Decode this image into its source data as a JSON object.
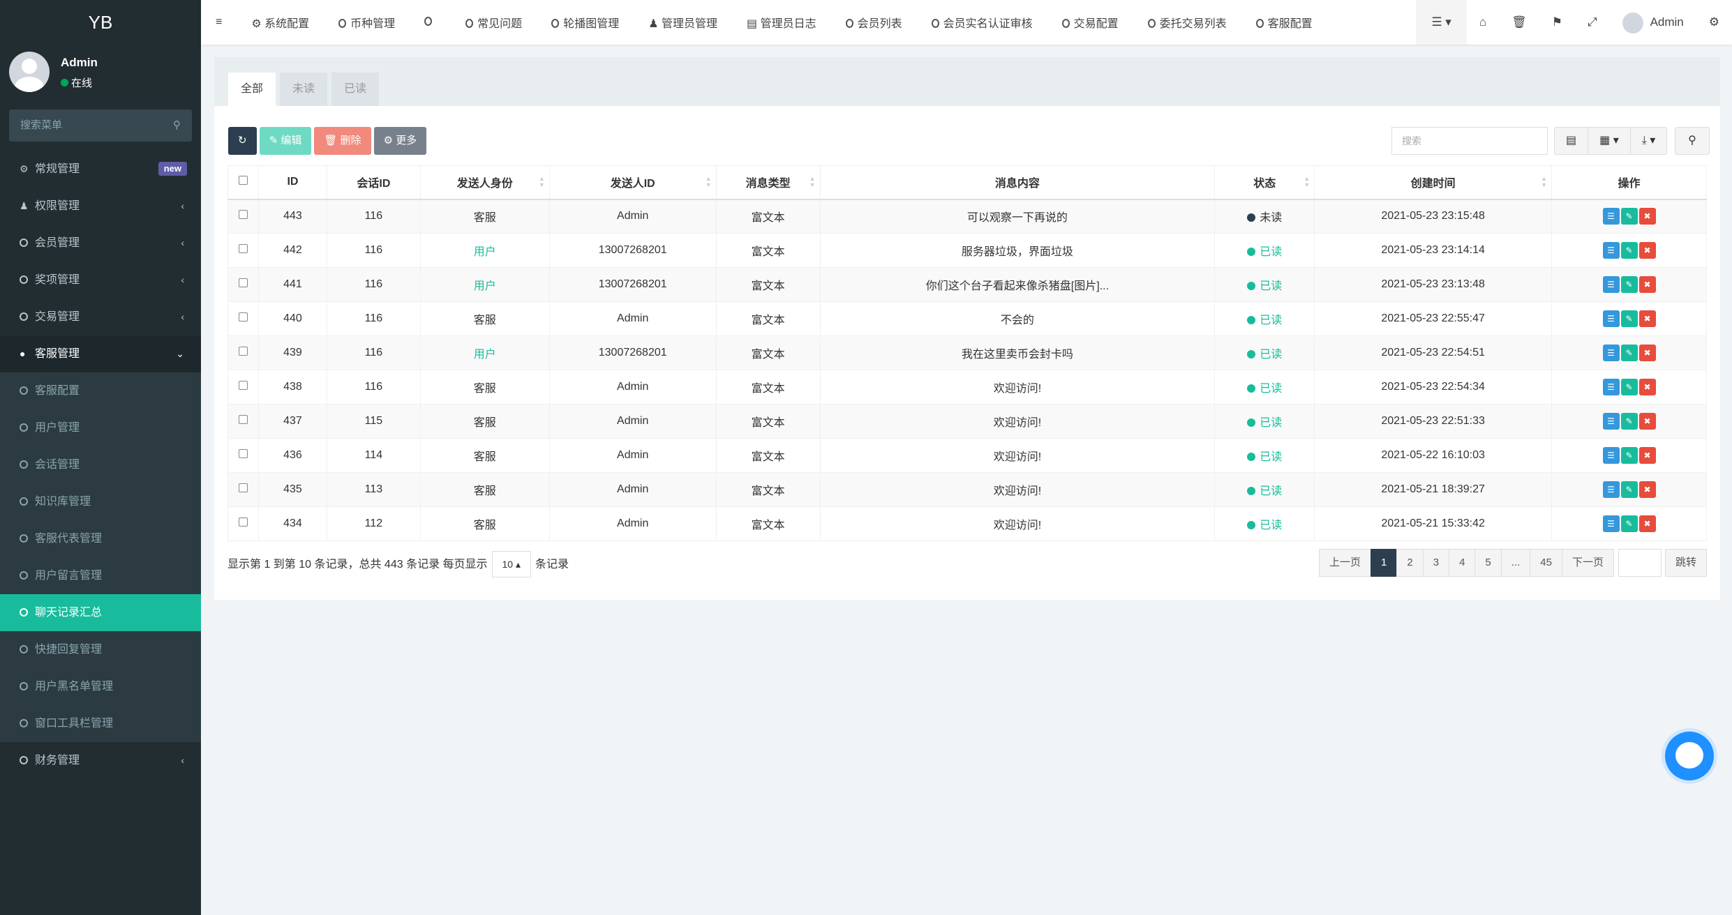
{
  "sidebar": {
    "logo": "YB",
    "user": "Admin",
    "status": "在线",
    "search_placeholder": "搜索菜单",
    "items": [
      {
        "label": "常规管理",
        "icon": "cogs-icon",
        "badge": "new"
      },
      {
        "label": "权限管理",
        "icon": "users-icon"
      },
      {
        "label": "会员管理"
      },
      {
        "label": "奖项管理"
      },
      {
        "label": "交易管理"
      },
      {
        "label": "客服管理",
        "icon": "comment-icon",
        "open": true
      }
    ],
    "sub": [
      "客服配置",
      "用户管理",
      "会话管理",
      "知识库管理",
      "客服代表管理",
      "用户留言管理",
      "聊天记录汇总",
      "快捷回复管理",
      "用户黑名单管理",
      "窗口工具栏管理"
    ],
    "active": "聊天记录汇总",
    "after": [
      {
        "label": "财务管理"
      }
    ]
  },
  "topnav": {
    "items": [
      "系统配置",
      "币种管理",
      "",
      "常见问题",
      "轮播图管理",
      "管理员管理",
      "管理员日志",
      "会员列表",
      "会员实名认证审核",
      "交易配置",
      "委托交易列表",
      "客服配置"
    ],
    "user": "Admin"
  },
  "tabs": [
    "全部",
    "未读",
    "已读"
  ],
  "toolbar": {
    "edit": "编辑",
    "delete": "删除",
    "more": "更多",
    "search_placeholder": "搜索"
  },
  "table": {
    "columns": [
      "ID",
      "会话ID",
      "发送人身份",
      "发送人ID",
      "消息类型",
      "消息内容",
      "状态",
      "创建时间",
      "操作"
    ],
    "rows": [
      [
        "443",
        "116",
        "客服",
        "Admin",
        "富文本",
        "可以观察一下再说的",
        "未读",
        "2021-05-23 23:15:48"
      ],
      [
        "442",
        "116",
        "用户",
        "13007268201",
        "富文本",
        "服务器垃圾，界面垃圾",
        "已读",
        "2021-05-23 23:14:14"
      ],
      [
        "441",
        "116",
        "用户",
        "13007268201",
        "富文本",
        "你们这个台子看起来像杀猪盘[图片]...",
        "已读",
        "2021-05-23 23:13:48"
      ],
      [
        "440",
        "116",
        "客服",
        "Admin",
        "富文本",
        "不会的",
        "已读",
        "2021-05-23 22:55:47"
      ],
      [
        "439",
        "116",
        "用户",
        "13007268201",
        "富文本",
        "我在这里卖币会封卡吗",
        "已读",
        "2021-05-23 22:54:51"
      ],
      [
        "438",
        "116",
        "客服",
        "Admin",
        "富文本",
        "欢迎访问!",
        "已读",
        "2021-05-23 22:54:34"
      ],
      [
        "437",
        "115",
        "客服",
        "Admin",
        "富文本",
        "欢迎访问!",
        "已读",
        "2021-05-23 22:51:33"
      ],
      [
        "436",
        "114",
        "客服",
        "Admin",
        "富文本",
        "欢迎访问!",
        "已读",
        "2021-05-22 16:10:03"
      ],
      [
        "435",
        "113",
        "客服",
        "Admin",
        "富文本",
        "欢迎访问!",
        "已读",
        "2021-05-21 18:39:27"
      ],
      [
        "434",
        "112",
        "客服",
        "Admin",
        "富文本",
        "欢迎访问!",
        "已读",
        "2021-05-21 15:33:42"
      ]
    ]
  },
  "pagination": {
    "info": "显示第 1 到第 10 条记录，总共 443 条记录 每页显示",
    "page_size": "10",
    "suffix": "条记录",
    "prev": "上一页",
    "pages": [
      "1",
      "2",
      "3",
      "4",
      "5",
      "...",
      "45"
    ],
    "current": "1",
    "next": "下一页",
    "jump": "跳转"
  },
  "colors": {
    "accent": "#18bc9c",
    "sidebar": "#222d32",
    "unread": "#2c3e50",
    "read": "#18bc9c",
    "edit": "#18bc9c",
    "delete": "#e74c3c",
    "view": "#3498db"
  }
}
